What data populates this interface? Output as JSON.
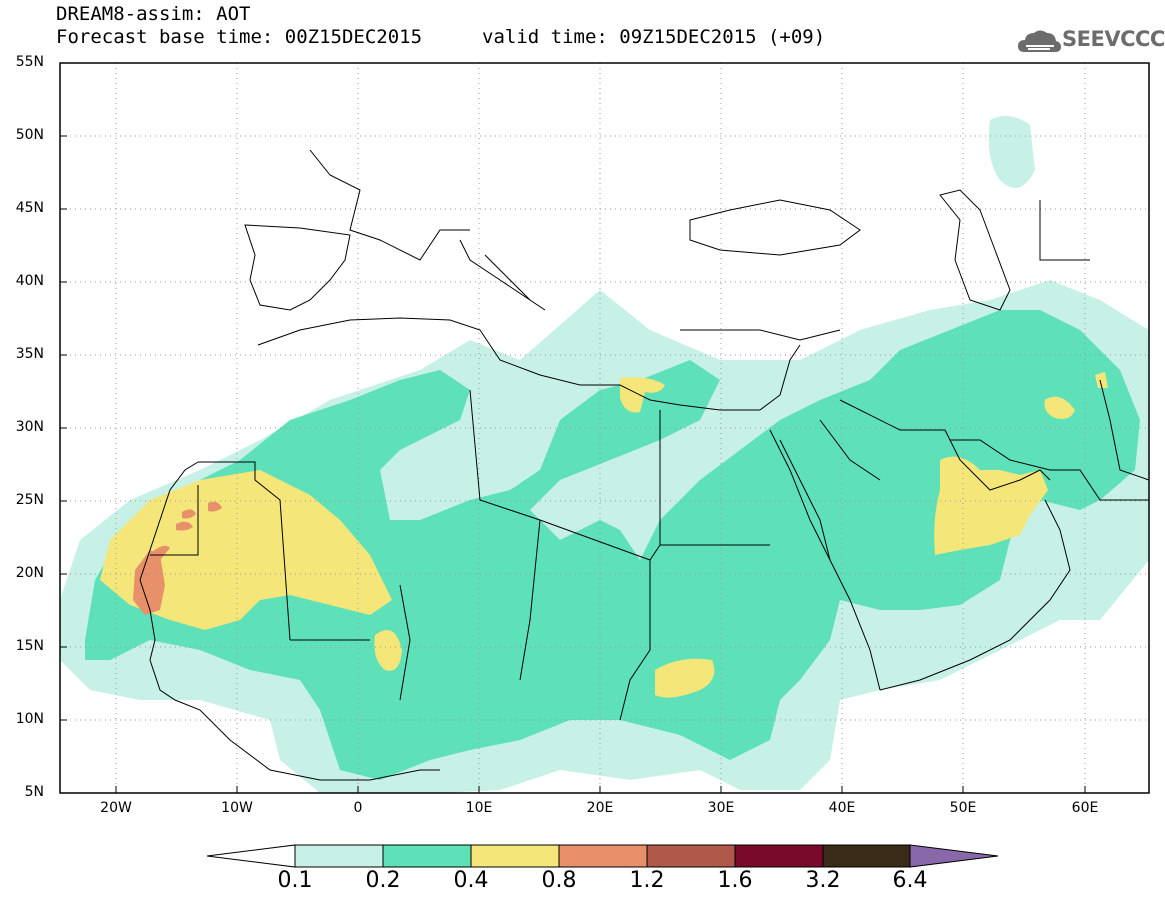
{
  "header": {
    "title": "DREAM8-assim: AOT",
    "base_time": "Forecast base time: 00Z15DEC2015",
    "valid_time": "valid time: 09Z15DEC2015 (+09)"
  },
  "logo": {
    "text": "SEEVCCC",
    "icon": "cloud-icon"
  },
  "map": {
    "lon_range": [
      -25,
      65
    ],
    "lat_range": [
      5,
      55
    ],
    "grid": "dotted",
    "lat_labels": [
      "55N",
      "50N",
      "45N",
      "40N",
      "35N",
      "30N",
      "25N",
      "20N",
      "15N",
      "10N",
      "5N"
    ],
    "lon_labels": [
      "20W",
      "10W",
      "0",
      "10E",
      "20E",
      "30E",
      "40E",
      "50E",
      "60E"
    ]
  },
  "colorbar": {
    "thresholds": [
      "0.1",
      "0.2",
      "0.4",
      "0.8",
      "1.2",
      "1.6",
      "3.2",
      "6.4"
    ],
    "colors": [
      "#ffffff",
      "#c7f0e6",
      "#5ee0b8",
      "#f5e67a",
      "#e8906a",
      "#b0584a",
      "#7a0a2a",
      "#3a2a18",
      "#8868a8"
    ]
  }
}
